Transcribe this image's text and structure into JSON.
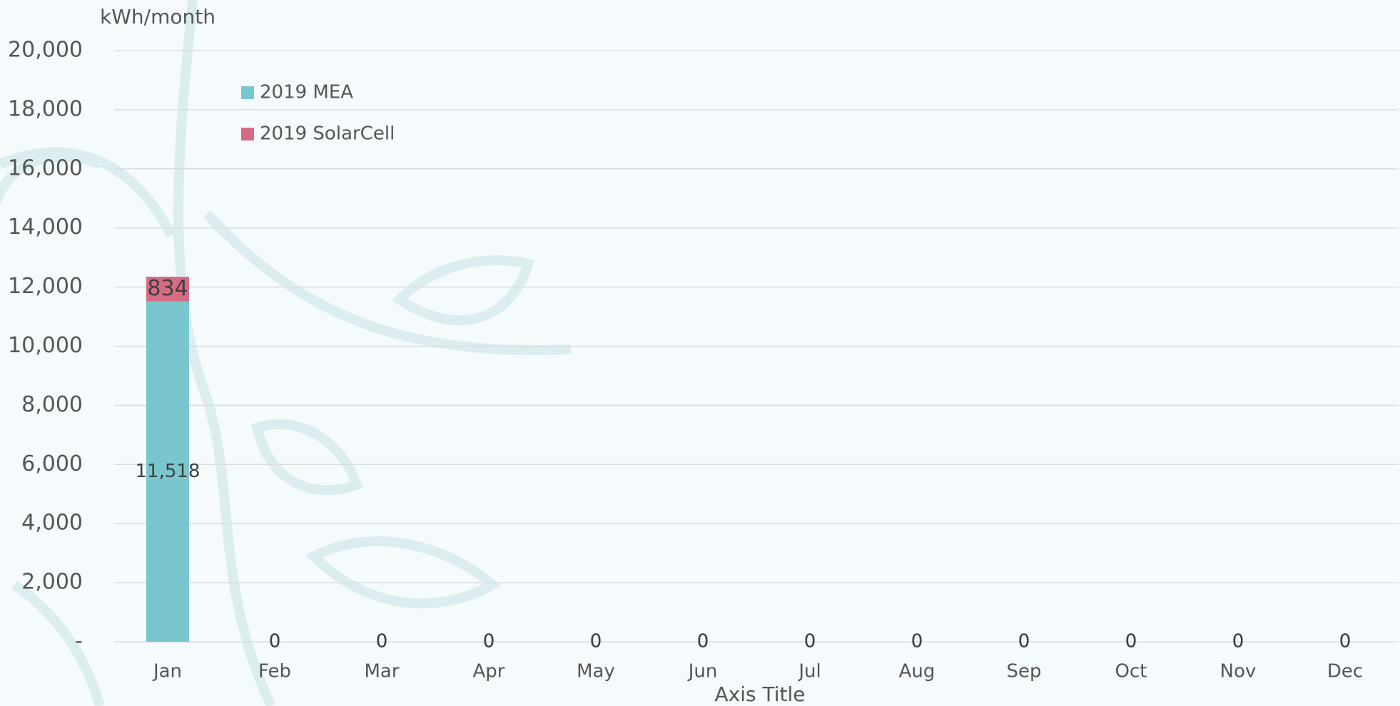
{
  "chart_data": {
    "type": "stacked_bar",
    "y_axis_title": "kWh/month",
    "x_axis_title": "Axis Title",
    "categories": [
      "Jan",
      "Feb",
      "Mar",
      "Apr",
      "May",
      "Jun",
      "Jul",
      "Aug",
      "Sep",
      "Oct",
      "Nov",
      "Dec"
    ],
    "series": [
      {
        "name": "2019 MEA",
        "color": "#7ac6cf",
        "values": [
          11518,
          0,
          0,
          0,
          0,
          0,
          0,
          0,
          0,
          0,
          0,
          0
        ],
        "value_labels": [
          "11,518",
          "0",
          "0",
          "0",
          "0",
          "0",
          "0",
          "0",
          "0",
          "0",
          "0",
          "0"
        ]
      },
      {
        "name": "2019 SolarCell",
        "color": "#d56c84",
        "values": [
          834,
          0,
          0,
          0,
          0,
          0,
          0,
          0,
          0,
          0,
          0,
          0
        ]
      }
    ],
    "ylim": [
      0,
      20000
    ],
    "yticks": [
      {
        "value": 0,
        "label": "-"
      },
      {
        "value": 2000,
        "label": "2,000"
      },
      {
        "value": 4000,
        "label": "4,000"
      },
      {
        "value": 6000,
        "label": "6,000"
      },
      {
        "value": 8000,
        "label": "8,000"
      },
      {
        "value": 10000,
        "label": "10,000"
      },
      {
        "value": 12000,
        "label": "12,000"
      },
      {
        "value": 14000,
        "label": "14,000"
      },
      {
        "value": 16000,
        "label": "16,000"
      },
      {
        "value": 18000,
        "label": "18,000"
      },
      {
        "value": 20000,
        "label": "20,000"
      }
    ],
    "grid": true,
    "legend": "upper-left"
  }
}
